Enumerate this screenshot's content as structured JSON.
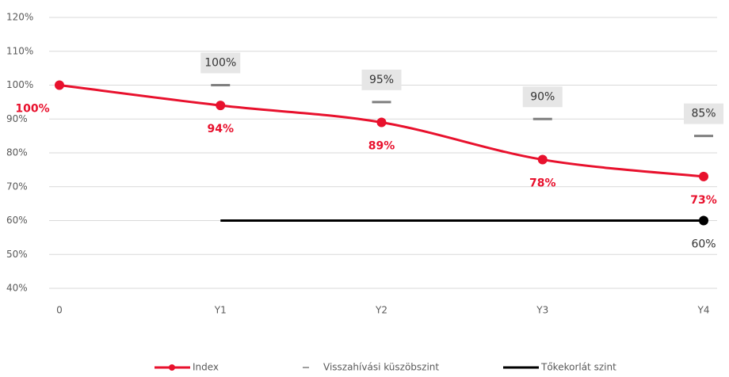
{
  "chart_data": {
    "type": "line",
    "categories": [
      "0",
      "Y1",
      "Y2",
      "Y3",
      "Y4"
    ],
    "series": [
      {
        "name": "Index",
        "color": "#e8112d",
        "values": [
          100,
          94,
          89,
          78,
          73
        ],
        "value_labels": [
          "100%",
          "94%",
          "89%",
          "78%",
          "73%"
        ],
        "style": "smooth-line-markers"
      },
      {
        "name": "Visszahívási küszöbszint",
        "color": "#7f7f7f",
        "values": [
          null,
          100,
          95,
          90,
          85
        ],
        "value_labels": [
          null,
          "100%",
          "95%",
          "90%",
          "85%"
        ],
        "style": "dash"
      },
      {
        "name": "Tőkekorlát szint",
        "color": "#000000",
        "values": [
          null,
          60,
          60,
          60,
          60
        ],
        "value_labels": [
          null,
          null,
          null,
          null,
          "60%"
        ],
        "style": "line-end-marker"
      }
    ],
    "ylim": [
      40,
      120
    ],
    "yticks": [
      {
        "value": 40,
        "label": "40%"
      },
      {
        "value": 50,
        "label": "50%"
      },
      {
        "value": 60,
        "label": "60%"
      },
      {
        "value": 70,
        "label": "70%"
      },
      {
        "value": 80,
        "label": "80%"
      },
      {
        "value": 90,
        "label": "90%"
      },
      {
        "value": 100,
        "label": "100%"
      },
      {
        "value": 110,
        "label": "110%"
      },
      {
        "value": 120,
        "label": "120%"
      }
    ],
    "grid": true,
    "legend": "bottom"
  }
}
